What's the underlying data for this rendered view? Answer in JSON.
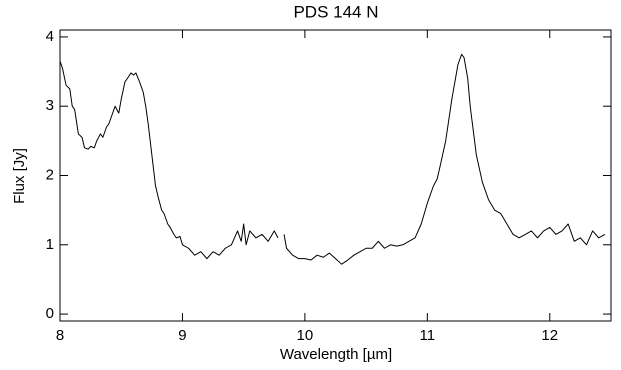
{
  "chart_data": {
    "type": "line",
    "title": "PDS 144 N",
    "xlabel": "Wavelength  [µm]",
    "ylabel": "Flux [Jy]",
    "xlim": [
      8,
      12.5
    ],
    "ylim": [
      -0.1,
      4.1
    ],
    "xticks": [
      8,
      9,
      10,
      11,
      12
    ],
    "yticks": [
      0,
      1,
      2,
      3,
      4
    ],
    "color": "#000000",
    "x": [
      8.0,
      8.02,
      8.05,
      8.08,
      8.1,
      8.12,
      8.15,
      8.18,
      8.2,
      8.23,
      8.25,
      8.28,
      8.3,
      8.33,
      8.35,
      8.38,
      8.4,
      8.43,
      8.45,
      8.48,
      8.5,
      8.53,
      8.55,
      8.58,
      8.6,
      8.62,
      8.65,
      8.68,
      8.7,
      8.72,
      8.75,
      8.78,
      8.8,
      8.83,
      8.85,
      8.88,
      8.9,
      8.93,
      8.95,
      8.98,
      9.0,
      9.05,
      9.1,
      9.15,
      9.2,
      9.25,
      9.3,
      9.35,
      9.4,
      9.45,
      9.48,
      9.5,
      9.52,
      9.55,
      9.6,
      9.65,
      9.7,
      9.75,
      9.78,
      9.8,
      9.83,
      9.85,
      9.9,
      9.95,
      10.0,
      10.05,
      10.1,
      10.15,
      10.2,
      10.25,
      10.3,
      10.35,
      10.4,
      10.45,
      10.5,
      10.55,
      10.6,
      10.65,
      10.7,
      10.75,
      10.8,
      10.85,
      10.9,
      10.95,
      11.0,
      11.05,
      11.08,
      11.1,
      11.15,
      11.2,
      11.25,
      11.28,
      11.3,
      11.33,
      11.35,
      11.4,
      11.45,
      11.5,
      11.55,
      11.6,
      11.65,
      11.7,
      11.75,
      11.8,
      11.85,
      11.9,
      11.95,
      12.0,
      12.05,
      12.1,
      12.15,
      12.2,
      12.25,
      12.3,
      12.35,
      12.4,
      12.45
    ],
    "series": [
      {
        "values": [
          3.65,
          3.55,
          3.3,
          3.25,
          3.0,
          2.95,
          2.6,
          2.55,
          2.4,
          2.38,
          2.42,
          2.4,
          2.5,
          2.6,
          2.55,
          2.7,
          2.75,
          2.9,
          3.0,
          2.9,
          3.1,
          3.35,
          3.4,
          3.48,
          3.45,
          3.48,
          3.35,
          3.2,
          3.0,
          2.75,
          2.3,
          1.85,
          1.7,
          1.5,
          1.45,
          1.3,
          1.25,
          1.15,
          1.1,
          1.12,
          1.0,
          0.95,
          0.85,
          0.9,
          0.8,
          0.9,
          0.85,
          0.95,
          1.0,
          1.2,
          1.05,
          1.3,
          1.0,
          1.2,
          1.1,
          1.15,
          1.05,
          1.2,
          1.1,
          null,
          1.15,
          0.95,
          0.85,
          0.8,
          0.8,
          0.78,
          0.85,
          0.82,
          0.88,
          0.8,
          0.72,
          0.78,
          0.85,
          0.9,
          0.95,
          0.95,
          1.05,
          0.95,
          1.0,
          0.98,
          1.0,
          1.05,
          1.1,
          1.3,
          1.6,
          1.85,
          1.95,
          2.1,
          2.5,
          3.1,
          3.6,
          3.75,
          3.7,
          3.4,
          3.0,
          2.3,
          1.9,
          1.65,
          1.5,
          1.45,
          1.3,
          1.15,
          1.1,
          1.15,
          1.2,
          1.1,
          1.2,
          1.25,
          1.15,
          1.2,
          1.3,
          1.05,
          1.1,
          1.0,
          1.2,
          1.1,
          1.15
        ]
      }
    ]
  }
}
